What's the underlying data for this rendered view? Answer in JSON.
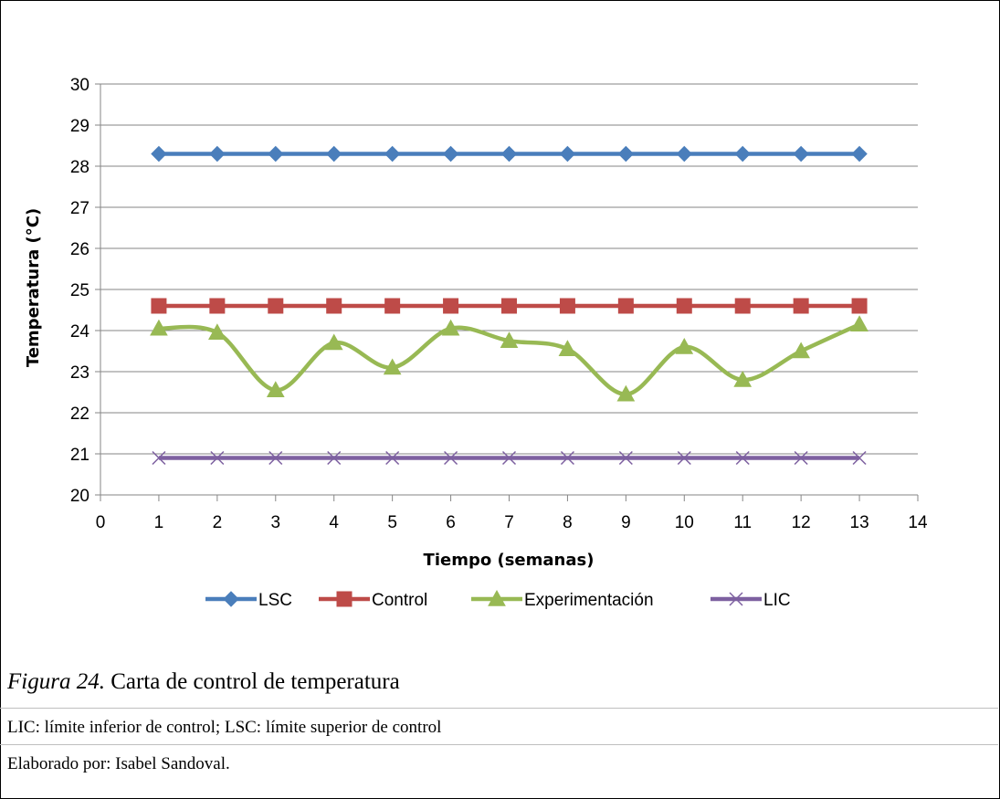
{
  "chart_data": {
    "type": "line",
    "title": "",
    "xlabel": "Tiempo (semanas)",
    "ylabel": "Temperatura (°C)",
    "xlim": [
      0,
      14
    ],
    "ylim": [
      20,
      30
    ],
    "x_ticks": [
      0,
      1,
      2,
      3,
      4,
      5,
      6,
      7,
      8,
      9,
      10,
      11,
      12,
      13,
      14
    ],
    "y_ticks": [
      20,
      21,
      22,
      23,
      24,
      25,
      26,
      27,
      28,
      29,
      30
    ],
    "grid": "horizontal",
    "legend_position": "bottom",
    "x": [
      1,
      2,
      3,
      4,
      5,
      6,
      7,
      8,
      9,
      10,
      11,
      12,
      13
    ],
    "series": [
      {
        "name": "LSC",
        "color": "#4a7ebb",
        "marker": "diamond",
        "smooth": false,
        "values": [
          28.3,
          28.3,
          28.3,
          28.3,
          28.3,
          28.3,
          28.3,
          28.3,
          28.3,
          28.3,
          28.3,
          28.3,
          28.3
        ]
      },
      {
        "name": "Control",
        "color": "#be4b48",
        "marker": "square",
        "smooth": false,
        "values": [
          24.6,
          24.6,
          24.6,
          24.6,
          24.6,
          24.6,
          24.6,
          24.6,
          24.6,
          24.6,
          24.6,
          24.6,
          24.6
        ]
      },
      {
        "name": "Experimentación",
        "color": "#98b954",
        "marker": "triangle",
        "smooth": true,
        "values": [
          24.05,
          23.95,
          22.55,
          23.7,
          23.1,
          24.05,
          23.75,
          23.55,
          22.45,
          23.6,
          22.8,
          23.5,
          24.15
        ]
      },
      {
        "name": "LIC",
        "color": "#7d60a0",
        "marker": "x",
        "smooth": false,
        "values": [
          20.9,
          20.9,
          20.9,
          20.9,
          20.9,
          20.9,
          20.9,
          20.9,
          20.9,
          20.9,
          20.9,
          20.9,
          20.9
        ]
      }
    ]
  },
  "caption": {
    "figure_label": "Figura 24.",
    "figure_title": "Carta de control de temperatura",
    "note": "LIC: límite inferior de control; LSC: límite superior de control",
    "author": "Elaborado por: Isabel Sandoval."
  }
}
